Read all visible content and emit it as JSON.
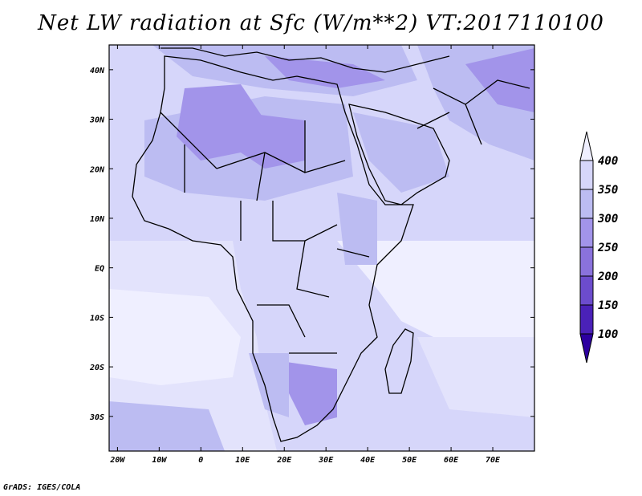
{
  "title": "Net LW radiation at Sfc (W/m**2) VT:2017110100",
  "credit": "GrADS: IGES/COLA",
  "map": {
    "lon_ticks": [
      "20W",
      "10W",
      "0",
      "10E",
      "20E",
      "30E",
      "40E",
      "50E",
      "60E",
      "70E"
    ],
    "lat_ticks": [
      "40N",
      "30N",
      "20N",
      "10N",
      "EQ",
      "10S",
      "20S",
      "30S"
    ],
    "lon_range": [
      -22,
      80
    ],
    "lat_range": [
      -37,
      45
    ]
  },
  "colorbar": {
    "labels": [
      "400",
      "350",
      "300",
      "250",
      "200",
      "150",
      "100"
    ],
    "colors": [
      "#efefff",
      "#d6d6fa",
      "#bcbcf2",
      "#a294ea",
      "#8a72dc",
      "#6c4ccd",
      "#4a21b8",
      "#2d00a0"
    ]
  }
}
